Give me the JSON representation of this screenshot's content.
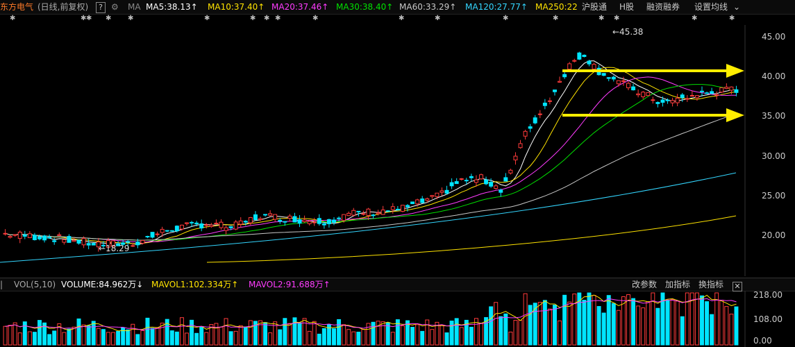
{
  "header": {
    "stock_name": "东方电气",
    "mode": "(日线,前复权)",
    "help_label": "?",
    "ma_label": "MA",
    "ma": [
      {
        "label": "MA5:38.13",
        "arrow": "↑",
        "color": "#ffffff"
      },
      {
        "label": "MA10:37.40",
        "arrow": "↑",
        "color": "#ffe300"
      },
      {
        "label": "MA20:37.46",
        "arrow": "↑",
        "color": "#ff3cff"
      },
      {
        "label": "MA30:38.40",
        "arrow": "↑",
        "color": "#00e000"
      },
      {
        "label": "MA60:33.29",
        "arrow": "↑",
        "color": "#c8c8c8"
      },
      {
        "label": "MA120:27.77",
        "arrow": "↑",
        "color": "#33d6ff"
      },
      {
        "label": "MA250:22",
        "arrow": "",
        "color": "#ffe300"
      }
    ],
    "buttons": [
      "沪股通",
      "H股",
      "融资融券",
      "设置均线"
    ],
    "dropdown_icon": "chevron-down-icon"
  },
  "price_axis": {
    "ticks": [
      "45.00",
      "40.00",
      "35.00",
      "30.00",
      "25.00",
      "20.00"
    ]
  },
  "annotations": {
    "high": "←45.38",
    "low": "←18.29"
  },
  "volume_panel": {
    "label": "VOL(5,10)",
    "volume": "VOLUME:84.962万",
    "volume_arrow": "↓",
    "mavol1": "MAVOL1:102.334万",
    "mavol1_arrow": "↑",
    "mavol2": "MAVOL2:91.688万",
    "mavol2_arrow": "↑",
    "buttons": [
      "改参数",
      "加指标",
      "换指标"
    ],
    "close": "✕",
    "axis_ticks": [
      "218.00",
      "108.00",
      "0.00"
    ]
  },
  "marker_glyph": "✱",
  "colors": {
    "up": "#ff3b3b",
    "down": "#00e5ff",
    "arrow": "#ffee00"
  }
}
